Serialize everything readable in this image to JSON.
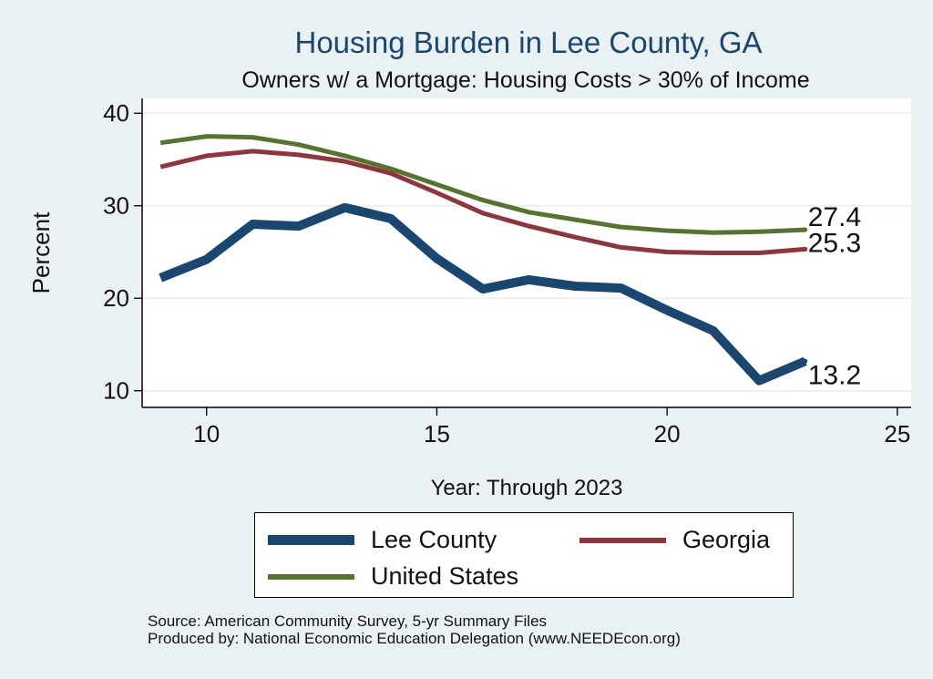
{
  "chart_data": {
    "type": "line",
    "title": "Housing Burden in Lee County, GA",
    "subtitle": "Owners w/ a Mortgage: Housing Costs > 30% of Income",
    "xlabel": "Year: Through 2023",
    "ylabel": "Percent",
    "xlim": [
      8.6,
      25.3
    ],
    "ylim": [
      8.2,
      41.6
    ],
    "xticks": [
      10,
      15,
      20,
      25
    ],
    "yticks": [
      10,
      20,
      30,
      40
    ],
    "x": [
      9,
      10,
      11,
      12,
      13,
      14,
      15,
      16,
      17,
      18,
      19,
      20,
      21,
      22,
      23
    ],
    "series": [
      {
        "name": "Lee County",
        "color": "#1a476f",
        "values": [
          22.2,
          24.2,
          28.0,
          27.8,
          29.8,
          28.6,
          24.3,
          21.0,
          22.0,
          21.3,
          21.1,
          18.7,
          16.5,
          11.1,
          13.2
        ],
        "end_label": "13.2"
      },
      {
        "name": "Georgia",
        "color": "#90353b",
        "values": [
          34.2,
          35.4,
          35.9,
          35.5,
          34.8,
          33.5,
          31.4,
          29.2,
          27.8,
          26.6,
          25.5,
          25.0,
          24.9,
          24.9,
          25.3
        ],
        "end_label": "25.3"
      },
      {
        "name": "United States",
        "color": "#55752f",
        "values": [
          36.8,
          37.5,
          37.4,
          36.6,
          35.4,
          34.0,
          32.3,
          30.6,
          29.3,
          28.5,
          27.7,
          27.3,
          27.1,
          27.2,
          27.4
        ],
        "end_label": "27.4"
      }
    ],
    "legend": [
      "Lee County",
      "Georgia",
      "United States"
    ],
    "grid": true,
    "legend_position": "bottom"
  },
  "source_line1": "Source: American Community Survey, 5-yr Summary Files",
  "source_line2": "Produced by: National Economic Education Delegation (www.NEEDEcon.org)"
}
